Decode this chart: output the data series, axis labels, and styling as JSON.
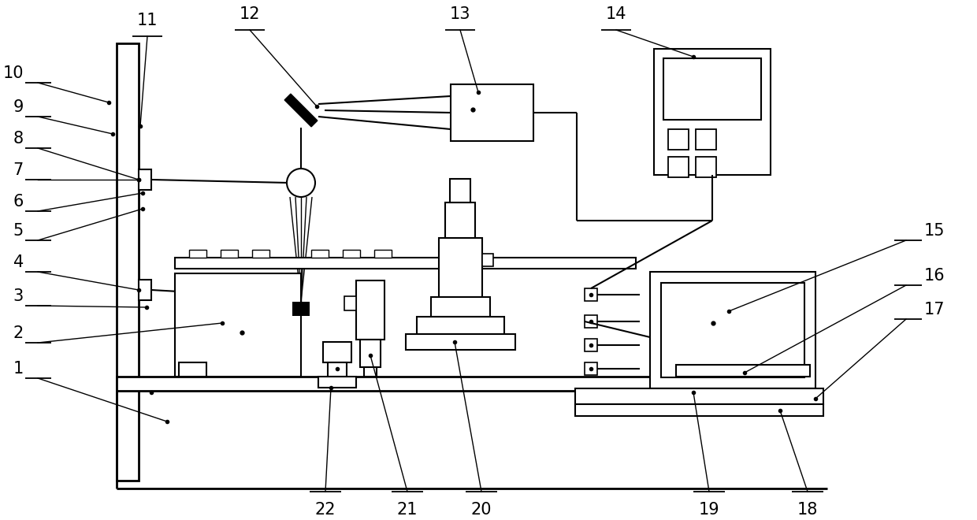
{
  "bg_color": "#ffffff",
  "lc": "#000000",
  "lw": 1.5,
  "fs": 15
}
